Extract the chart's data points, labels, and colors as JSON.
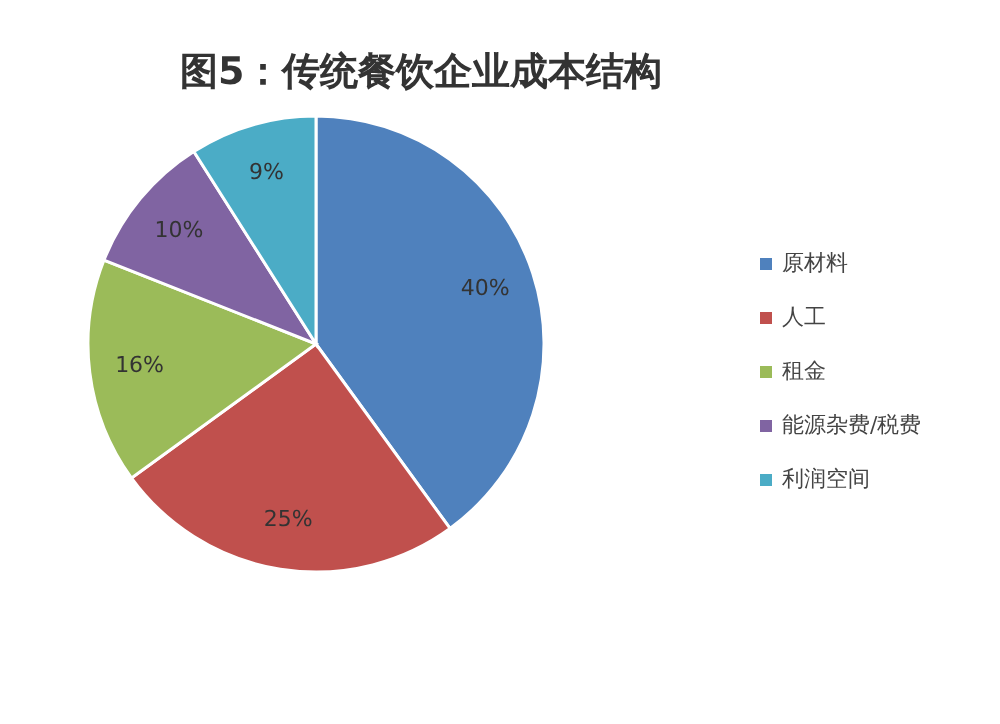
{
  "chart_data": {
    "type": "pie",
    "title": "图5：传统餐饮企业成本结构",
    "categories": [
      "原材料",
      "人工",
      "租金",
      "能源杂费/税费",
      "利润空间"
    ],
    "values": [
      40,
      25,
      16,
      10,
      9
    ],
    "colors": [
      "#4f81bd",
      "#c0504d",
      "#9bbb59",
      "#8064a2",
      "#4bacc6"
    ],
    "value_labels": [
      "40%",
      "25%",
      "16%",
      "10%",
      "9%"
    ],
    "legend": "right"
  }
}
